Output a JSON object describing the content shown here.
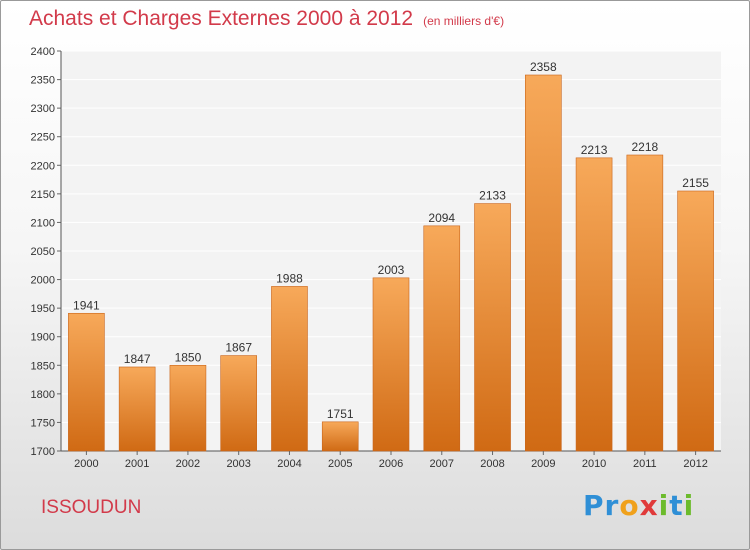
{
  "header": {
    "title": "Achats et Charges Externes 2000 à 2012",
    "subtitle": "(en milliers d'€)"
  },
  "footer": {
    "city": "ISSOUDUN",
    "logo_letters": [
      {
        "ch": "P",
        "color": "#2f8fd6"
      },
      {
        "ch": "r",
        "color": "#2f8fd6"
      },
      {
        "ch": "o",
        "color": "#f0a11b"
      },
      {
        "ch": "x",
        "color": "#e03a3a"
      },
      {
        "ch": "i",
        "color": "#6cbb2c"
      },
      {
        "ch": "t",
        "color": "#2f8fd6"
      },
      {
        "ch": "i",
        "color": "#6cbb2c"
      }
    ]
  },
  "chart_data": {
    "type": "bar",
    "categories": [
      "2000",
      "2001",
      "2002",
      "2003",
      "2004",
      "2005",
      "2006",
      "2007",
      "2008",
      "2009",
      "2010",
      "2011",
      "2012"
    ],
    "values": [
      1941,
      1847,
      1850,
      1867,
      1988,
      1751,
      2003,
      2094,
      2133,
      2358,
      2213,
      2218,
      2155
    ],
    "title": "Achats et Charges Externes 2000 à 2012",
    "subtitle": "(en milliers d'€)",
    "xlabel": "",
    "ylabel": "",
    "ylim": [
      1700,
      2400
    ],
    "yticks": [
      1700,
      1750,
      1800,
      1850,
      1900,
      1950,
      2000,
      2050,
      2100,
      2150,
      2200,
      2250,
      2300,
      2350,
      2400
    ],
    "grid": true,
    "bar_color_top": "#f7a95a",
    "bar_color_bottom": "#d06a14"
  }
}
